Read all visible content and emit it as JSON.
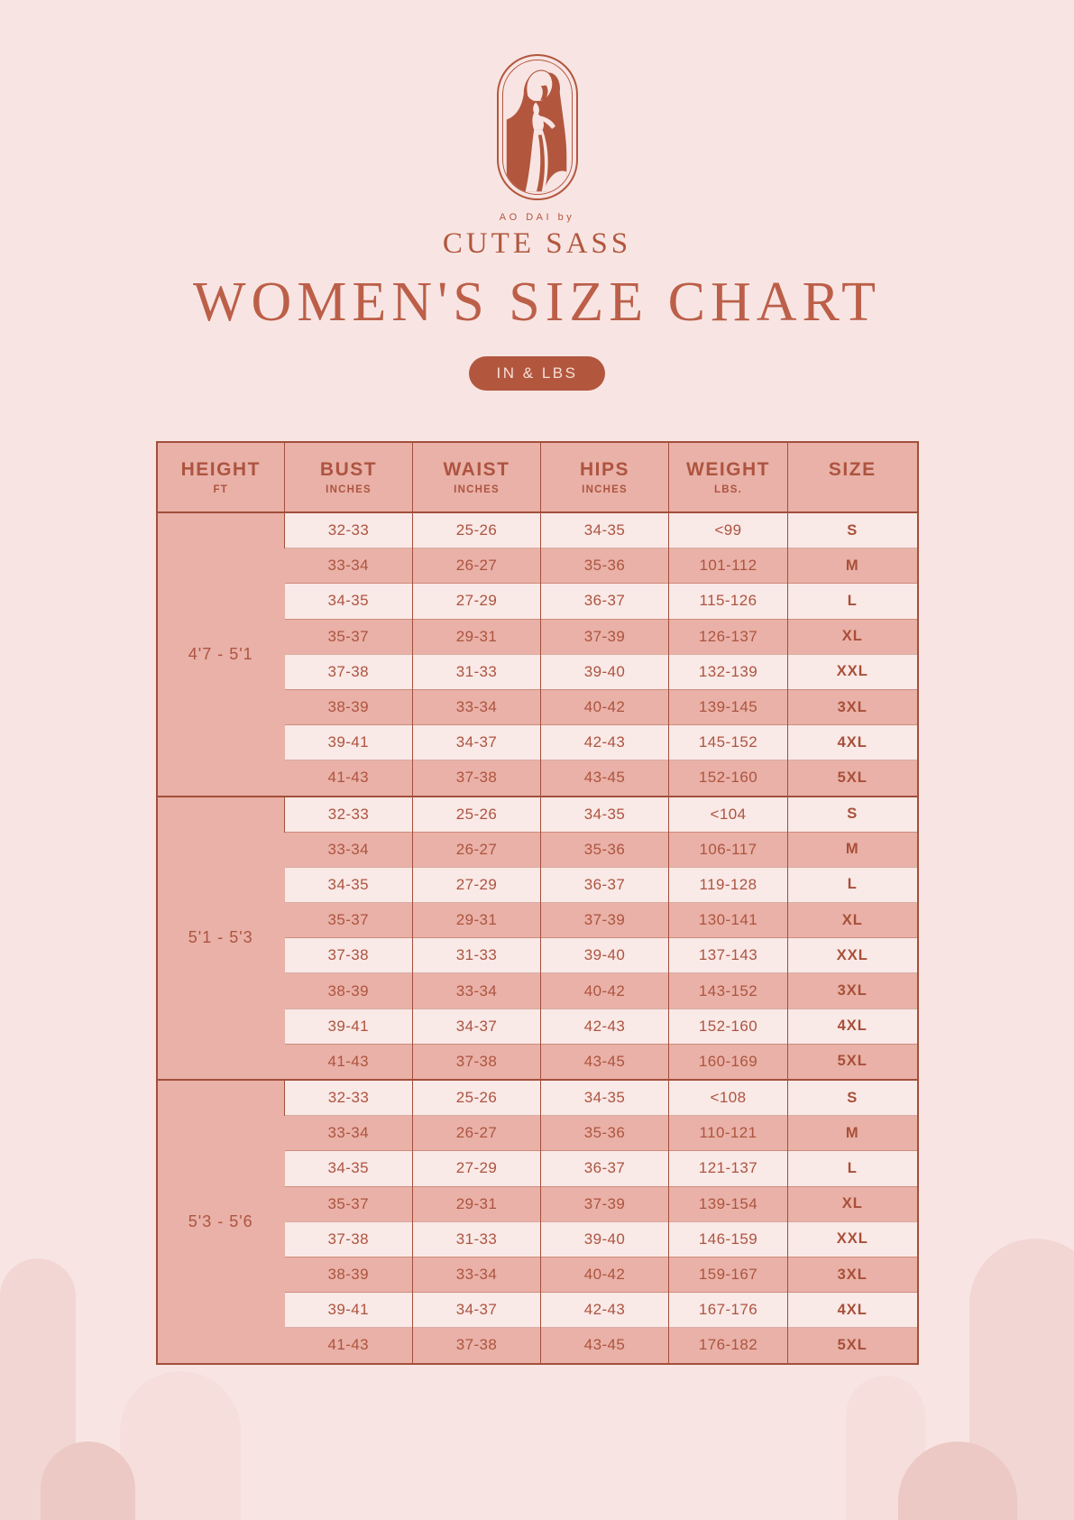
{
  "brand": {
    "tagline": "AO DAI by",
    "name": "CUTE SASS",
    "logo_icon": "woman-in-ao-dai-icon"
  },
  "title": "WOMEN'S SIZE CHART",
  "unit_badge": "IN & LBS",
  "colors": {
    "background": "#f8e5e3",
    "terracotta": "#b2573e",
    "title_text": "#bc5f49",
    "table_border": "#a24f3b",
    "row_light": "#f9e9e7",
    "row_dark": "#e9b1a7",
    "badge_background": "#b2573e",
    "badge_text": "#f8ded7",
    "arch_shade_1": "#f1d6d4",
    "arch_shade_2": "#f5dedc",
    "arch_shade_3": "#ecc9c5"
  },
  "chart_data": {
    "type": "table",
    "title": "WOMEN'S SIZE CHART",
    "units_label": "IN & LBS",
    "columns": [
      {
        "label": "HEIGHT",
        "sub": "FT"
      },
      {
        "label": "BUST",
        "sub": "INCHES"
      },
      {
        "label": "WAIST",
        "sub": "INCHES"
      },
      {
        "label": "HIPS",
        "sub": "INCHES"
      },
      {
        "label": "WEIGHT",
        "sub": "LBS."
      },
      {
        "label": "SIZE",
        "sub": ""
      }
    ],
    "groups": [
      {
        "height_range": "4'7 - 5'1",
        "rows": [
          [
            "32-33",
            "25-26",
            "34-35",
            "<99",
            "S"
          ],
          [
            "33-34",
            "26-27",
            "35-36",
            "101-112",
            "M"
          ],
          [
            "34-35",
            "27-29",
            "36-37",
            "115-126",
            "L"
          ],
          [
            "35-37",
            "29-31",
            "37-39",
            "126-137",
            "XL"
          ],
          [
            "37-38",
            "31-33",
            "39-40",
            "132-139",
            "XXL"
          ],
          [
            "38-39",
            "33-34",
            "40-42",
            "139-145",
            "3XL"
          ],
          [
            "39-41",
            "34-37",
            "42-43",
            "145-152",
            "4XL"
          ],
          [
            "41-43",
            "37-38",
            "43-45",
            "152-160",
            "5XL"
          ]
        ]
      },
      {
        "height_range": "5'1 - 5'3",
        "rows": [
          [
            "32-33",
            "25-26",
            "34-35",
            "<104",
            "S"
          ],
          [
            "33-34",
            "26-27",
            "35-36",
            "106-117",
            "M"
          ],
          [
            "34-35",
            "27-29",
            "36-37",
            "119-128",
            "L"
          ],
          [
            "35-37",
            "29-31",
            "37-39",
            "130-141",
            "XL"
          ],
          [
            "37-38",
            "31-33",
            "39-40",
            "137-143",
            "XXL"
          ],
          [
            "38-39",
            "33-34",
            "40-42",
            "143-152",
            "3XL"
          ],
          [
            "39-41",
            "34-37",
            "42-43",
            "152-160",
            "4XL"
          ],
          [
            "41-43",
            "37-38",
            "43-45",
            "160-169",
            "5XL"
          ]
        ]
      },
      {
        "height_range": "5'3 - 5'6",
        "rows": [
          [
            "32-33",
            "25-26",
            "34-35",
            "<108",
            "S"
          ],
          [
            "33-34",
            "26-27",
            "35-36",
            "110-121",
            "M"
          ],
          [
            "34-35",
            "27-29",
            "36-37",
            "121-137",
            "L"
          ],
          [
            "35-37",
            "29-31",
            "37-39",
            "139-154",
            "XL"
          ],
          [
            "37-38",
            "31-33",
            "39-40",
            "146-159",
            "XXL"
          ],
          [
            "38-39",
            "33-34",
            "40-42",
            "159-167",
            "3XL"
          ],
          [
            "39-41",
            "34-37",
            "42-43",
            "167-176",
            "4XL"
          ],
          [
            "41-43",
            "37-38",
            "43-45",
            "176-182",
            "5XL"
          ]
        ]
      }
    ]
  }
}
